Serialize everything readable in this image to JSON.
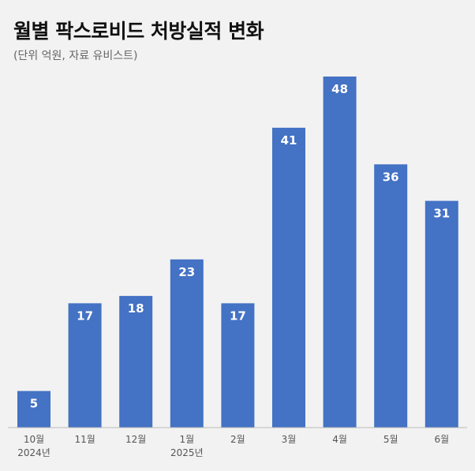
{
  "header": {
    "title": "월별 팍스로비드 처방실적 변화",
    "subtitle": "(단위 억원, 자료 유비스트)"
  },
  "colors": {
    "bar": "#4472c4",
    "value_label": "#ffffff",
    "axis_label": "#555555",
    "baseline": "#bbbbbb",
    "background": "#f2f2f2"
  },
  "chart_data": {
    "type": "bar",
    "categories": [
      "10월",
      "11월",
      "12월",
      "1월",
      "2월",
      "3월",
      "4월",
      "5월",
      "6월"
    ],
    "year_labels": [
      "2024년",
      "",
      "",
      "2025년",
      "",
      "",
      "",
      "",
      ""
    ],
    "values": [
      5,
      17,
      18,
      23,
      17,
      41,
      48,
      36,
      31
    ],
    "data_labels": true,
    "ylim": [
      0,
      48
    ],
    "grid": false,
    "legend": "none"
  }
}
